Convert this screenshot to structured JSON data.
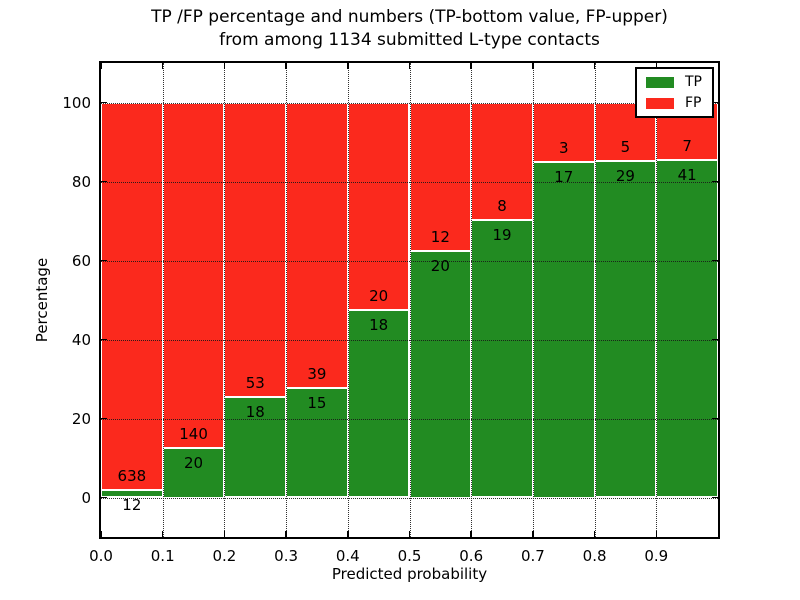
{
  "figure": {
    "background": "#ffffff"
  },
  "title": {
    "line1": "TP /FP percentage and numbers (TP-bottom value, FP-upper)",
    "line2": "from among 1134 submitted L-type contacts"
  },
  "axes": {
    "xlabel": "Predicted probability",
    "ylabel": "Percentage",
    "x_tick_labels": [
      "0.0",
      "0.1",
      "0.2",
      "0.3",
      "0.4",
      "0.5",
      "0.6",
      "0.7",
      "0.8",
      "0.9"
    ],
    "x_tick_values": [
      0.0,
      0.1,
      0.2,
      0.3,
      0.4,
      0.5,
      0.6,
      0.7,
      0.8,
      0.9
    ],
    "y_tick_labels": [
      "0",
      "20",
      "40",
      "60",
      "80",
      "100"
    ],
    "y_tick_values": [
      0,
      20,
      40,
      60,
      80,
      100
    ],
    "xlim": [
      0.0,
      1.0
    ],
    "ylim": [
      -10,
      110
    ],
    "grid_style": "dotted"
  },
  "legend": {
    "position": "upper-right",
    "items": [
      {
        "label": "TP",
        "color": "#228b22"
      },
      {
        "label": "FP",
        "color": "#fb291d"
      }
    ]
  },
  "colors": {
    "tp": "#228b22",
    "fp": "#fb291d",
    "bar_edge": "#ffffff",
    "axis": "#000000",
    "grid": "#1a1a1a",
    "background": "#ffffff"
  },
  "chart_data": {
    "type": "bar",
    "stacked": true,
    "normalized": "each bin scaled to 100%",
    "title": "TP /FP percentage and numbers (TP-bottom value, FP-upper) from among 1134 submitted L-type contacts",
    "xlabel": "Predicted probability",
    "ylabel": "Percentage",
    "total_contacts_shown_in_title": 1134,
    "bin_edges": [
      0.0,
      0.1,
      0.2,
      0.3,
      0.4,
      0.5,
      0.6,
      0.7,
      0.8,
      0.9,
      1.0
    ],
    "series": [
      {
        "name": "TP",
        "color": "#228b22",
        "counts": [
          12,
          20,
          18,
          15,
          18,
          20,
          19,
          17,
          29,
          41
        ]
      },
      {
        "name": "FP",
        "color": "#fb291d",
        "counts": [
          638,
          140,
          53,
          39,
          20,
          12,
          8,
          3,
          5,
          7
        ]
      }
    ],
    "tp_percent_by_bin": [
      1.8,
      12.5,
      25.4,
      27.8,
      47.4,
      62.5,
      70.4,
      85.0,
      85.3,
      85.4
    ],
    "fp_percent_by_bin": [
      98.2,
      87.5,
      74.6,
      72.2,
      52.6,
      37.5,
      29.6,
      15.0,
      14.7,
      14.6
    ],
    "ylim": [
      -10,
      110
    ],
    "grid": true,
    "legend_position": "upper right"
  }
}
